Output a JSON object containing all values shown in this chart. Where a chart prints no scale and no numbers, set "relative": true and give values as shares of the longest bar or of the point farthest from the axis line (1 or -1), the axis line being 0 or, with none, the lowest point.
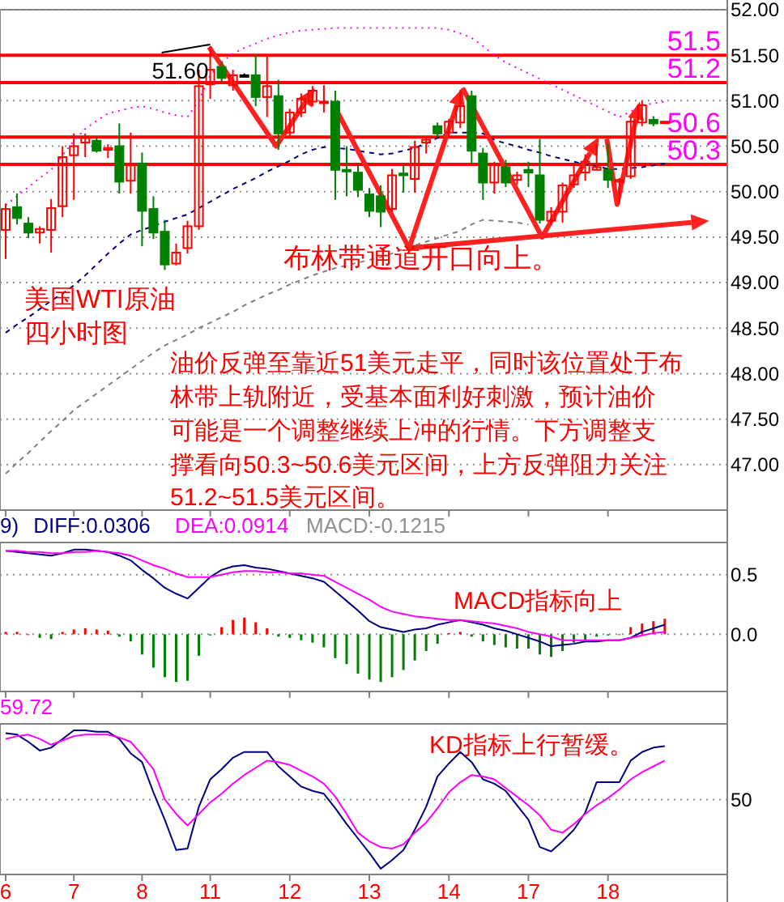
{
  "chart_data": [
    {
      "type": "candlestick",
      "tick_labels": "y",
      "grid": "y",
      "annotations": [
        "美国WTI原油",
        "四小时图",
        "油价反弹至靠近51美元走平，同时该位置处于布",
        "林带上轨附近，受基本面利好刺激，预计油价",
        "可能是一个调整继续上冲的行情。下方调整支",
        "撑看向50.3~50.6美元区间，上方反弹阻力关注",
        "51.2~51.5美元区间。",
        "布林带通道开口向上。",
        {
          "text": "51.60",
          "x": "11",
          "y": 51.6
        }
      ],
      "categories": [
        "6",
        null,
        null,
        null,
        null,
        null,
        "7",
        null,
        null,
        null,
        null,
        null,
        "8",
        null,
        null,
        null,
        null,
        null,
        "11",
        null,
        null,
        null,
        null,
        null,
        null,
        "12",
        null,
        null,
        null,
        null,
        null,
        null,
        "13",
        null,
        null,
        null,
        null,
        null,
        null,
        "14",
        null,
        null,
        null,
        null,
        null,
        null,
        "17",
        null,
        null,
        null,
        null,
        null,
        null,
        "18",
        null,
        null,
        null,
        null,
        null,
        null,
        null,
        null,
        null,
        null
      ],
      "ylim": [
        46.5,
        52.0
      ],
      "yticks": [
        {
          "value": 47,
          "label": "47.00"
        },
        {
          "value": 47.5,
          "label": "47.50"
        },
        {
          "value": 48,
          "label": "48.00"
        },
        {
          "value": 48.5,
          "label": "48.50"
        },
        {
          "value": 49,
          "label": "49.00"
        },
        {
          "value": 49.5,
          "label": "49.50"
        },
        {
          "value": 50,
          "label": "50.00"
        },
        {
          "value": 50.5,
          "label": "50.50"
        },
        {
          "value": 51,
          "label": "51.00"
        },
        {
          "value": 51.5,
          "label": "51.50"
        },
        {
          "value": 52,
          "label": "52.00"
        }
      ],
      "ohlc": [
        [
          49.58,
          49.87,
          49.26,
          49.81
        ],
        [
          49.83,
          49.98,
          49.64,
          49.71
        ],
        [
          49.65,
          49.72,
          49.49,
          49.55
        ],
        [
          49.55,
          49.62,
          49.43,
          49.59
        ],
        [
          49.58,
          49.92,
          49.33,
          49.82
        ],
        [
          49.84,
          50.5,
          49.72,
          50.38
        ],
        [
          50.4,
          50.64,
          49.91,
          50.5
        ],
        [
          50.54,
          50.64,
          50.38,
          50.59
        ],
        [
          50.56,
          50.59,
          50.43,
          50.45
        ],
        [
          50.46,
          50.52,
          50.37,
          50.48
        ],
        [
          50.5,
          50.75,
          49.98,
          50.11
        ],
        [
          50.12,
          50.65,
          49.98,
          50.29
        ],
        [
          50.31,
          50.43,
          49.4,
          49.79
        ],
        [
          49.81,
          49.95,
          49.48,
          49.55
        ],
        [
          49.56,
          49.69,
          49.14,
          49.2
        ],
        [
          49.21,
          49.43,
          49.19,
          49.33
        ],
        [
          49.38,
          49.68,
          49.32,
          49.62
        ],
        [
          49.62,
          51.34,
          49.58,
          51.16
        ],
        [
          51.18,
          51.6,
          51.02,
          51.34
        ],
        [
          51.37,
          51.43,
          51.2,
          51.25
        ],
        [
          51.17,
          51.34,
          51.11,
          51.28
        ],
        [
          51.28,
          51.3,
          51.26,
          51.28
        ],
        [
          51.28,
          51.51,
          50.94,
          51.04
        ],
        [
          51.04,
          51.51,
          50.82,
          51.16
        ],
        [
          51.05,
          51.23,
          50.46,
          50.64
        ],
        [
          50.65,
          50.91,
          50.59,
          50.87
        ],
        [
          50.87,
          51.08,
          50.82,
          51.02
        ],
        [
          50.99,
          51.16,
          50.94,
          51.11
        ],
        [
          50.98,
          51.17,
          50.87,
          50.99
        ],
        [
          50.99,
          51.11,
          49.91,
          50.24
        ],
        [
          50.24,
          50.5,
          49.95,
          50.23
        ],
        [
          50.21,
          50.3,
          49.94,
          50.02
        ],
        [
          49.97,
          50.04,
          49.72,
          49.79
        ],
        [
          49.95,
          50.07,
          49.61,
          49.78
        ],
        [
          49.81,
          50.25,
          49.78,
          50.18
        ],
        [
          50.2,
          50.29,
          49.99,
          50.18
        ],
        [
          50.14,
          50.56,
          49.99,
          50.49
        ],
        [
          50.54,
          50.61,
          50.42,
          50.57
        ],
        [
          50.72,
          50.76,
          50.6,
          50.64
        ],
        [
          50.65,
          50.8,
          50.6,
          50.77
        ],
        [
          50.76,
          51.12,
          50.7,
          50.94
        ],
        [
          51.05,
          51.11,
          50.31,
          50.45
        ],
        [
          50.42,
          50.48,
          49.91,
          50.1
        ],
        [
          50.1,
          50.33,
          49.98,
          50.3
        ],
        [
          50.27,
          50.35,
          50.05,
          50.1
        ],
        [
          50.13,
          50.22,
          50.08,
          50.18
        ],
        [
          50.24,
          50.33,
          50.05,
          50.21
        ],
        [
          50.18,
          50.58,
          49.65,
          49.69
        ],
        [
          49.68,
          49.83,
          49.63,
          49.78
        ],
        [
          49.78,
          50.1,
          49.66,
          50.07
        ],
        [
          50.08,
          50.3,
          50.04,
          50.18
        ],
        [
          50.21,
          50.41,
          50.12,
          50.33
        ],
        [
          50.24,
          50.53,
          50.24,
          50.27
        ],
        [
          50.24,
          50.53,
          50.04,
          50.13
        ],
        [
          50.11,
          50.15,
          49.87,
          50.13
        ],
        [
          50.17,
          50.82,
          50.14,
          50.77
        ],
        [
          50.76,
          51.0,
          50.72,
          50.95
        ],
        [
          50.79,
          50.83,
          50.72,
          50.75
        ],
        [
          50.76,
          50.77,
          50.76,
          50.77
        ],
        null,
        null,
        null,
        null,
        null
      ],
      "colors": [
        "#ff0000",
        "#008000",
        "#008000",
        "#ff0000",
        "#ff0000",
        "#ff0000",
        "#ff0000",
        "#ff0000",
        "#008000",
        "#ff0000",
        "#008000",
        "#ff0000",
        "#008000",
        "#008000",
        "#008000",
        "#ff0000",
        "#ff0000",
        "#ff0000",
        "#ff0000",
        "#008000",
        "#ff0000",
        "#000000",
        "#008000",
        "#ff0000",
        "#008000",
        "#ff0000",
        "#ff0000",
        "#ff0000",
        "#ff0000",
        "#008000",
        "#008000",
        "#008000",
        "#008000",
        "#008000",
        "#ff0000",
        "#008000",
        "#ff0000",
        "#ff0000",
        "#008000",
        "#ff0000",
        "#ff0000",
        "#008000",
        "#008000",
        "#ff0000",
        "#008000",
        "#ff0000",
        "#008000",
        "#008000",
        "#ff0000",
        "#ff0000",
        "#ff0000",
        "#ff0000",
        "#ff0000",
        "#008000",
        "#ff0000",
        "#ff0000",
        "#ff0000",
        "#008000",
        "#ff0000",
        null,
        null,
        null,
        null,
        null
      ],
      "series": [
        {
          "type": "line",
          "color": "#ff00ff",
          "line_style": "dotted",
          "values": [
            49.85,
            49.95,
            50.05,
            50.15,
            50.24,
            50.4,
            50.56,
            50.69,
            50.78,
            50.86,
            50.89,
            50.92,
            50.94,
            50.91,
            50.87,
            50.84,
            50.82,
            51.0,
            51.28,
            51.42,
            51.52,
            51.58,
            51.63,
            51.68,
            51.72,
            51.75,
            51.77,
            51.78,
            51.79,
            51.8,
            51.8,
            51.8,
            51.8,
            51.8,
            51.8,
            51.8,
            51.8,
            51.8,
            51.8,
            51.78,
            51.74,
            51.69,
            51.6,
            51.5,
            51.42,
            51.36,
            51.3,
            51.24,
            51.18,
            51.12,
            51.06,
            51.0,
            50.94,
            50.88,
            50.82,
            50.88,
            50.95,
            50.97,
            50.99,
            null,
            null,
            null,
            null,
            null
          ]
        },
        {
          "type": "line",
          "color": "#000080",
          "line_style": "dashed",
          "values": [
            48.45,
            48.54,
            48.62,
            48.71,
            48.8,
            48.88,
            48.97,
            49.08,
            49.2,
            49.32,
            49.43,
            49.53,
            49.58,
            49.62,
            49.67,
            49.71,
            49.75,
            49.82,
            49.89,
            49.96,
            50.03,
            50.09,
            50.15,
            50.22,
            50.28,
            50.34,
            50.41,
            50.46,
            50.49,
            50.48,
            50.47,
            50.45,
            50.43,
            50.41,
            50.42,
            50.45,
            50.48,
            50.53,
            50.59,
            50.65,
            50.65,
            50.65,
            50.64,
            50.57,
            50.53,
            50.5,
            50.46,
            50.43,
            50.39,
            50.36,
            50.33,
            50.3,
            50.28,
            50.25,
            50.25,
            50.26,
            50.27,
            50.29,
            50.31,
            null,
            null,
            null,
            null,
            null
          ]
        },
        {
          "type": "line",
          "color": "#808080",
          "line_style": "dashed",
          "values": [
            46.9,
            47.02,
            47.13,
            47.25,
            47.37,
            47.48,
            47.6,
            47.69,
            47.78,
            47.87,
            47.96,
            48.05,
            48.14,
            48.23,
            48.31,
            48.37,
            48.43,
            48.5,
            48.56,
            48.62,
            48.68,
            48.75,
            48.81,
            48.87,
            48.92,
            48.98,
            49.03,
            49.08,
            49.12,
            49.16,
            49.19,
            49.22,
            49.25,
            49.28,
            49.32,
            49.37,
            49.41,
            49.45,
            49.49,
            49.53,
            49.57,
            49.64,
            49.69,
            49.68,
            49.67,
            49.66,
            49.64,
            null,
            null,
            null,
            null,
            null,
            null,
            null,
            null,
            null,
            null,
            null,
            null,
            null,
            null,
            null,
            null,
            null
          ]
        }
      ],
      "ref_lines": [
        {
          "axis": "y",
          "value": 51.5,
          "label": "51.5",
          "color": "#ff0000"
        },
        {
          "axis": "y",
          "value": 51.2,
          "label": "51.2",
          "color": "#ff0000"
        },
        {
          "axis": "y",
          "value": 50.6,
          "label": "50.6",
          "color": "#ff0000"
        },
        {
          "axis": "y",
          "value": 50.3,
          "label": "50.3",
          "color": "#ff0000"
        }
      ]
    },
    {
      "type": "bar",
      "subtitle": "9)",
      "legend": "top left",
      "tick_labels": "y",
      "grid": "y",
      "annotations": [
        "MACD指标向上",
        "MACD:-0.1215"
      ],
      "categories": [
        "6",
        null,
        null,
        null,
        null,
        null,
        "7",
        null,
        null,
        null,
        null,
        null,
        "8",
        null,
        null,
        null,
        null,
        null,
        "11",
        null,
        null,
        null,
        null,
        null,
        null,
        "12",
        null,
        null,
        null,
        null,
        null,
        null,
        "13",
        null,
        null,
        null,
        null,
        null,
        null,
        "14",
        null,
        null,
        null,
        null,
        null,
        null,
        "17",
        null,
        null,
        null,
        null,
        null,
        null,
        "18",
        null,
        null,
        null,
        null,
        null,
        null,
        null,
        null,
        null,
        null
      ],
      "ylim": [
        -0.48,
        0.77
      ],
      "yticks": [
        {
          "value": 0,
          "label": "0.0"
        },
        {
          "value": 0.5,
          "label": "0.5"
        }
      ],
      "series": [
        {
          "name": "DIFF:0.0306",
          "type": "line",
          "color": "#000080",
          "values": [
            0.7,
            0.69,
            0.68,
            0.67,
            0.66,
            0.68,
            0.71,
            0.71,
            0.7,
            0.69,
            0.66,
            0.62,
            0.54,
            0.47,
            0.39,
            0.34,
            0.3,
            0.39,
            0.48,
            0.54,
            0.57,
            0.58,
            0.56,
            0.55,
            0.53,
            0.51,
            0.49,
            0.47,
            0.44,
            0.36,
            0.28,
            0.2,
            0.11,
            0.06,
            0.04,
            0.02,
            0.04,
            0.05,
            0.08,
            0.1,
            0.12,
            0.1,
            0.08,
            0.05,
            0.03,
            0.0,
            -0.03,
            -0.06,
            -0.1,
            -0.09,
            -0.08,
            -0.06,
            -0.06,
            -0.05,
            -0.05,
            -0.03,
            0.02,
            0.05,
            0.08,
            null,
            null,
            null,
            null,
            null
          ]
        },
        {
          "name": "DEA:0.0914",
          "type": "line",
          "color": "#ff00ff",
          "values": [
            0.7,
            0.7,
            0.69,
            0.69,
            0.68,
            0.68,
            0.69,
            0.69,
            0.7,
            0.69,
            0.68,
            0.66,
            0.62,
            0.58,
            0.55,
            0.51,
            0.48,
            0.48,
            0.48,
            0.5,
            0.52,
            0.53,
            0.53,
            0.52,
            0.52,
            0.51,
            0.51,
            0.5,
            0.49,
            0.44,
            0.39,
            0.34,
            0.29,
            0.23,
            0.19,
            0.17,
            0.15,
            0.14,
            0.13,
            0.12,
            0.12,
            0.11,
            0.1,
            0.09,
            0.07,
            0.05,
            0.02,
            0.0,
            -0.02,
            -0.05,
            -0.05,
            -0.05,
            -0.05,
            -0.05,
            -0.05,
            -0.03,
            -0.01,
            0.01,
            0.02,
            null,
            null,
            null,
            null,
            null
          ]
        },
        {
          "type": "bar",
          "values": [
            0.02,
            0.02,
            0.0,
            -0.03,
            -0.04,
            0.02,
            0.04,
            0.05,
            0.04,
            0.03,
            -0.02,
            -0.06,
            -0.17,
            -0.28,
            -0.36,
            -0.4,
            -0.39,
            -0.18,
            -0.01,
            0.06,
            0.12,
            0.14,
            0.1,
            0.05,
            -0.02,
            -0.03,
            -0.05,
            -0.07,
            -0.11,
            -0.2,
            -0.25,
            -0.33,
            -0.38,
            -0.4,
            -0.36,
            -0.3,
            -0.22,
            -0.14,
            -0.08,
            0.01,
            0.02,
            -0.02,
            -0.06,
            -0.09,
            -0.11,
            -0.12,
            -0.12,
            -0.17,
            -0.19,
            -0.14,
            -0.07,
            -0.05,
            -0.02,
            -0.01,
            0.0,
            0.06,
            0.09,
            0.11,
            0.13,
            null,
            null,
            null,
            null,
            null
          ],
          "colors": [
            "#ff0000",
            "#ff0000",
            "#ff0000",
            "#008000",
            "#008000",
            "#ff0000",
            "#ff0000",
            "#ff0000",
            "#ff0000",
            "#ff0000",
            "#008000",
            "#008000",
            "#008000",
            "#008000",
            "#008000",
            "#008000",
            "#008000",
            "#008000",
            "#008000",
            "#ff0000",
            "#ff0000",
            "#ff0000",
            "#ff0000",
            "#ff0000",
            "#008000",
            "#008000",
            "#008000",
            "#008000",
            "#008000",
            "#008000",
            "#008000",
            "#008000",
            "#008000",
            "#008000",
            "#008000",
            "#008000",
            "#008000",
            "#008000",
            "#008000",
            "#ff0000",
            "#ff0000",
            "#008000",
            "#008000",
            "#008000",
            "#008000",
            "#008000",
            "#008000",
            "#008000",
            "#008000",
            "#008000",
            "#008000",
            "#008000",
            "#008000",
            "#008000",
            "#ff0000",
            "#ff0000",
            "#ff0000",
            "#ff0000",
            "#ff0000",
            null,
            null,
            null,
            null,
            null
          ]
        }
      ]
    },
    {
      "type": "line",
      "subtitle": "59.72",
      "relative": true,
      "tick_labels": "x",
      "annotations": [
        "KD指标上行暂缓。",
        "50"
      ],
      "categories": [
        "6",
        null,
        null,
        null,
        null,
        null,
        "7",
        null,
        null,
        null,
        null,
        null,
        "8",
        null,
        null,
        null,
        null,
        null,
        "11",
        null,
        null,
        null,
        null,
        null,
        null,
        "12",
        null,
        null,
        null,
        null,
        null,
        null,
        "13",
        null,
        null,
        null,
        null,
        null,
        null,
        "14",
        null,
        null,
        null,
        null,
        null,
        null,
        "17",
        null,
        null,
        null,
        null,
        null,
        null,
        "18",
        null,
        null,
        null,
        null,
        null,
        null,
        null,
        null,
        null,
        null
      ],
      "ref_lines": [
        {
          "axis": "y",
          "value": 0.52,
          "line_style": "dotted",
          "color": "#909090"
        }
      ],
      "series": [
        {
          "color": "#000080",
          "values": [
            0.98,
            0.97,
            0.92,
            0.86,
            0.88,
            0.94,
            1,
            1,
            0.99,
            0.99,
            0.94,
            0.84,
            0.78,
            0.57,
            0.38,
            0.17,
            0.18,
            0.47,
            0.66,
            0.73,
            0.81,
            0.85,
            0.85,
            0.85,
            0.75,
            0.68,
            0.61,
            0.58,
            0.56,
            0.46,
            0.35,
            0.25,
            0.15,
            0.04,
            0.1,
            0.17,
            0.31,
            0.47,
            0.68,
            0.77,
            0.85,
            0.78,
            0.66,
            0.63,
            0.58,
            0.48,
            0.38,
            0.19,
            0.16,
            0.23,
            0.31,
            0.43,
            0.64,
            0.64,
            0.64,
            0.79,
            0.85,
            0.88,
            0.89,
            null,
            null,
            null,
            null,
            null
          ]
        },
        {
          "color": "#ff00ff",
          "values": [
            0.94,
            0.96,
            0.97,
            0.94,
            0.9,
            0.93,
            0.96,
            0.97,
            0.97,
            0.97,
            0.95,
            0.92,
            0.83,
            0.73,
            0.52,
            0.42,
            0.34,
            0.42,
            0.5,
            0.56,
            0.63,
            0.69,
            0.74,
            0.79,
            0.78,
            0.76,
            0.72,
            0.68,
            0.63,
            0.54,
            0.42,
            0.29,
            0.23,
            0.19,
            0.18,
            0.21,
            0.29,
            0.36,
            0.46,
            0.57,
            0.64,
            0.69,
            0.68,
            0.66,
            0.6,
            0.54,
            0.48,
            0.41,
            0.31,
            0.29,
            0.35,
            0.42,
            0.48,
            0.53,
            0.59,
            0.66,
            0.71,
            0.75,
            0.79,
            null,
            null,
            null,
            null,
            null
          ]
        }
      ]
    }
  ]
}
